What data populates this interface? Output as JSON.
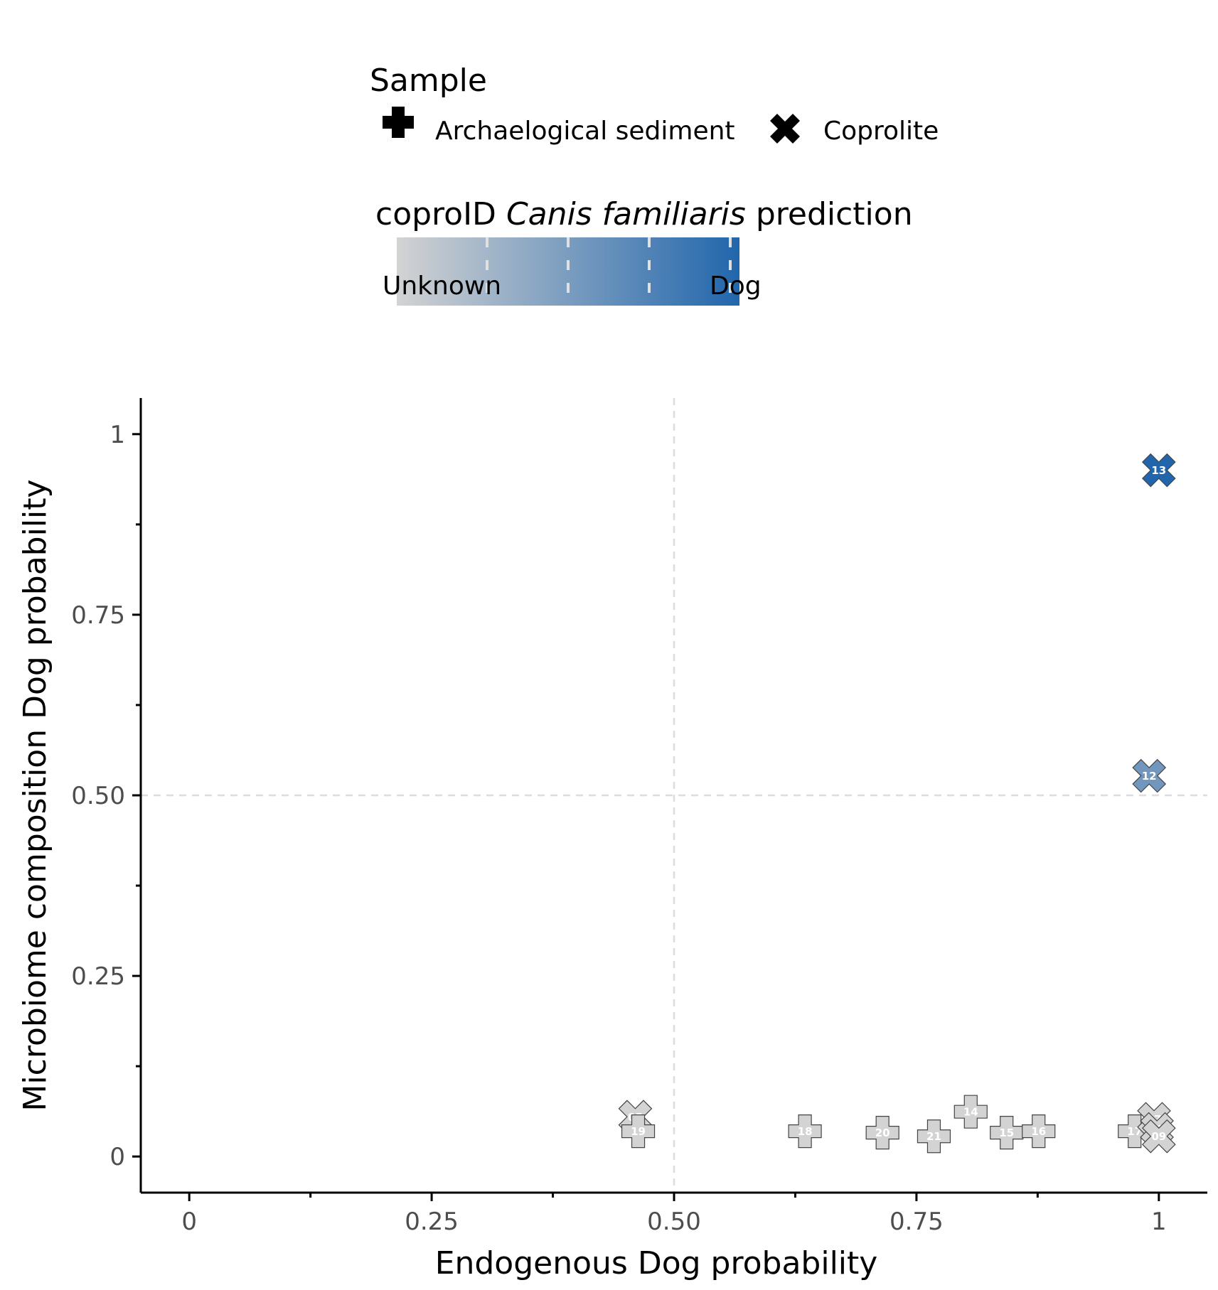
{
  "chart_data": {
    "type": "scatter",
    "xlabel": "Endogenous Dog probability",
    "ylabel": "Microbiome composition Dog probability",
    "xlim": [
      -0.05,
      1.05
    ],
    "ylim": [
      -0.05,
      1.05
    ],
    "x_ticks": [
      "0",
      "0.25",
      "0.50",
      "0.75",
      "1"
    ],
    "y_ticks": [
      "0",
      "0.25",
      "0.50",
      "0.75",
      "1"
    ],
    "reference_lines": {
      "x": 0.5,
      "y": 0.5,
      "style": "dashed"
    },
    "grid": false,
    "legend_position": "top",
    "shape_legend": {
      "title": "Sample",
      "entries": [
        {
          "label": "Archaelogical sediment",
          "shape": "plus"
        },
        {
          "label": "Coprolite",
          "shape": "cross"
        }
      ]
    },
    "color_legend": {
      "title_prefix": "coproID ",
      "title_italic": "Canis familiaris",
      "title_suffix": " prediction",
      "low_label": "Unknown",
      "high_label": "Dog",
      "low_color": "#d3d3d3",
      "high_color": "#2166ac"
    },
    "points": [
      {
        "label": "05",
        "x": 0.46,
        "y": 0.055,
        "shape": "cross",
        "pred": 0.0
      },
      {
        "label": "19",
        "x": 0.463,
        "y": 0.035,
        "shape": "plus",
        "pred": 0.0
      },
      {
        "label": "18",
        "x": 0.635,
        "y": 0.035,
        "shape": "plus",
        "pred": 0.0
      },
      {
        "label": "20",
        "x": 0.715,
        "y": 0.033,
        "shape": "plus",
        "pred": 0.0
      },
      {
        "label": "21",
        "x": 0.768,
        "y": 0.028,
        "shape": "plus",
        "pred": 0.0
      },
      {
        "label": "14",
        "x": 0.806,
        "y": 0.062,
        "shape": "plus",
        "pred": 0.0
      },
      {
        "label": "15",
        "x": 0.843,
        "y": 0.033,
        "shape": "plus",
        "pred": 0.0
      },
      {
        "label": "16",
        "x": 0.876,
        "y": 0.035,
        "shape": "plus",
        "pred": 0.0
      },
      {
        "label": "17",
        "x": 0.975,
        "y": 0.035,
        "shape": "plus",
        "pred": 0.0
      },
      {
        "label": "07",
        "x": 0.995,
        "y": 0.052,
        "shape": "cross",
        "pred": 0.0
      },
      {
        "label": "01",
        "x": 0.998,
        "y": 0.038,
        "shape": "cross",
        "pred": 0.0
      },
      {
        "label": "09",
        "x": 1.0,
        "y": 0.028,
        "shape": "cross",
        "pred": 0.0
      },
      {
        "label": "12",
        "x": 0.99,
        "y": 0.527,
        "shape": "cross",
        "pred": 0.55
      },
      {
        "label": "13",
        "x": 1.0,
        "y": 0.95,
        "shape": "cross",
        "pred": 1.0
      }
    ]
  }
}
